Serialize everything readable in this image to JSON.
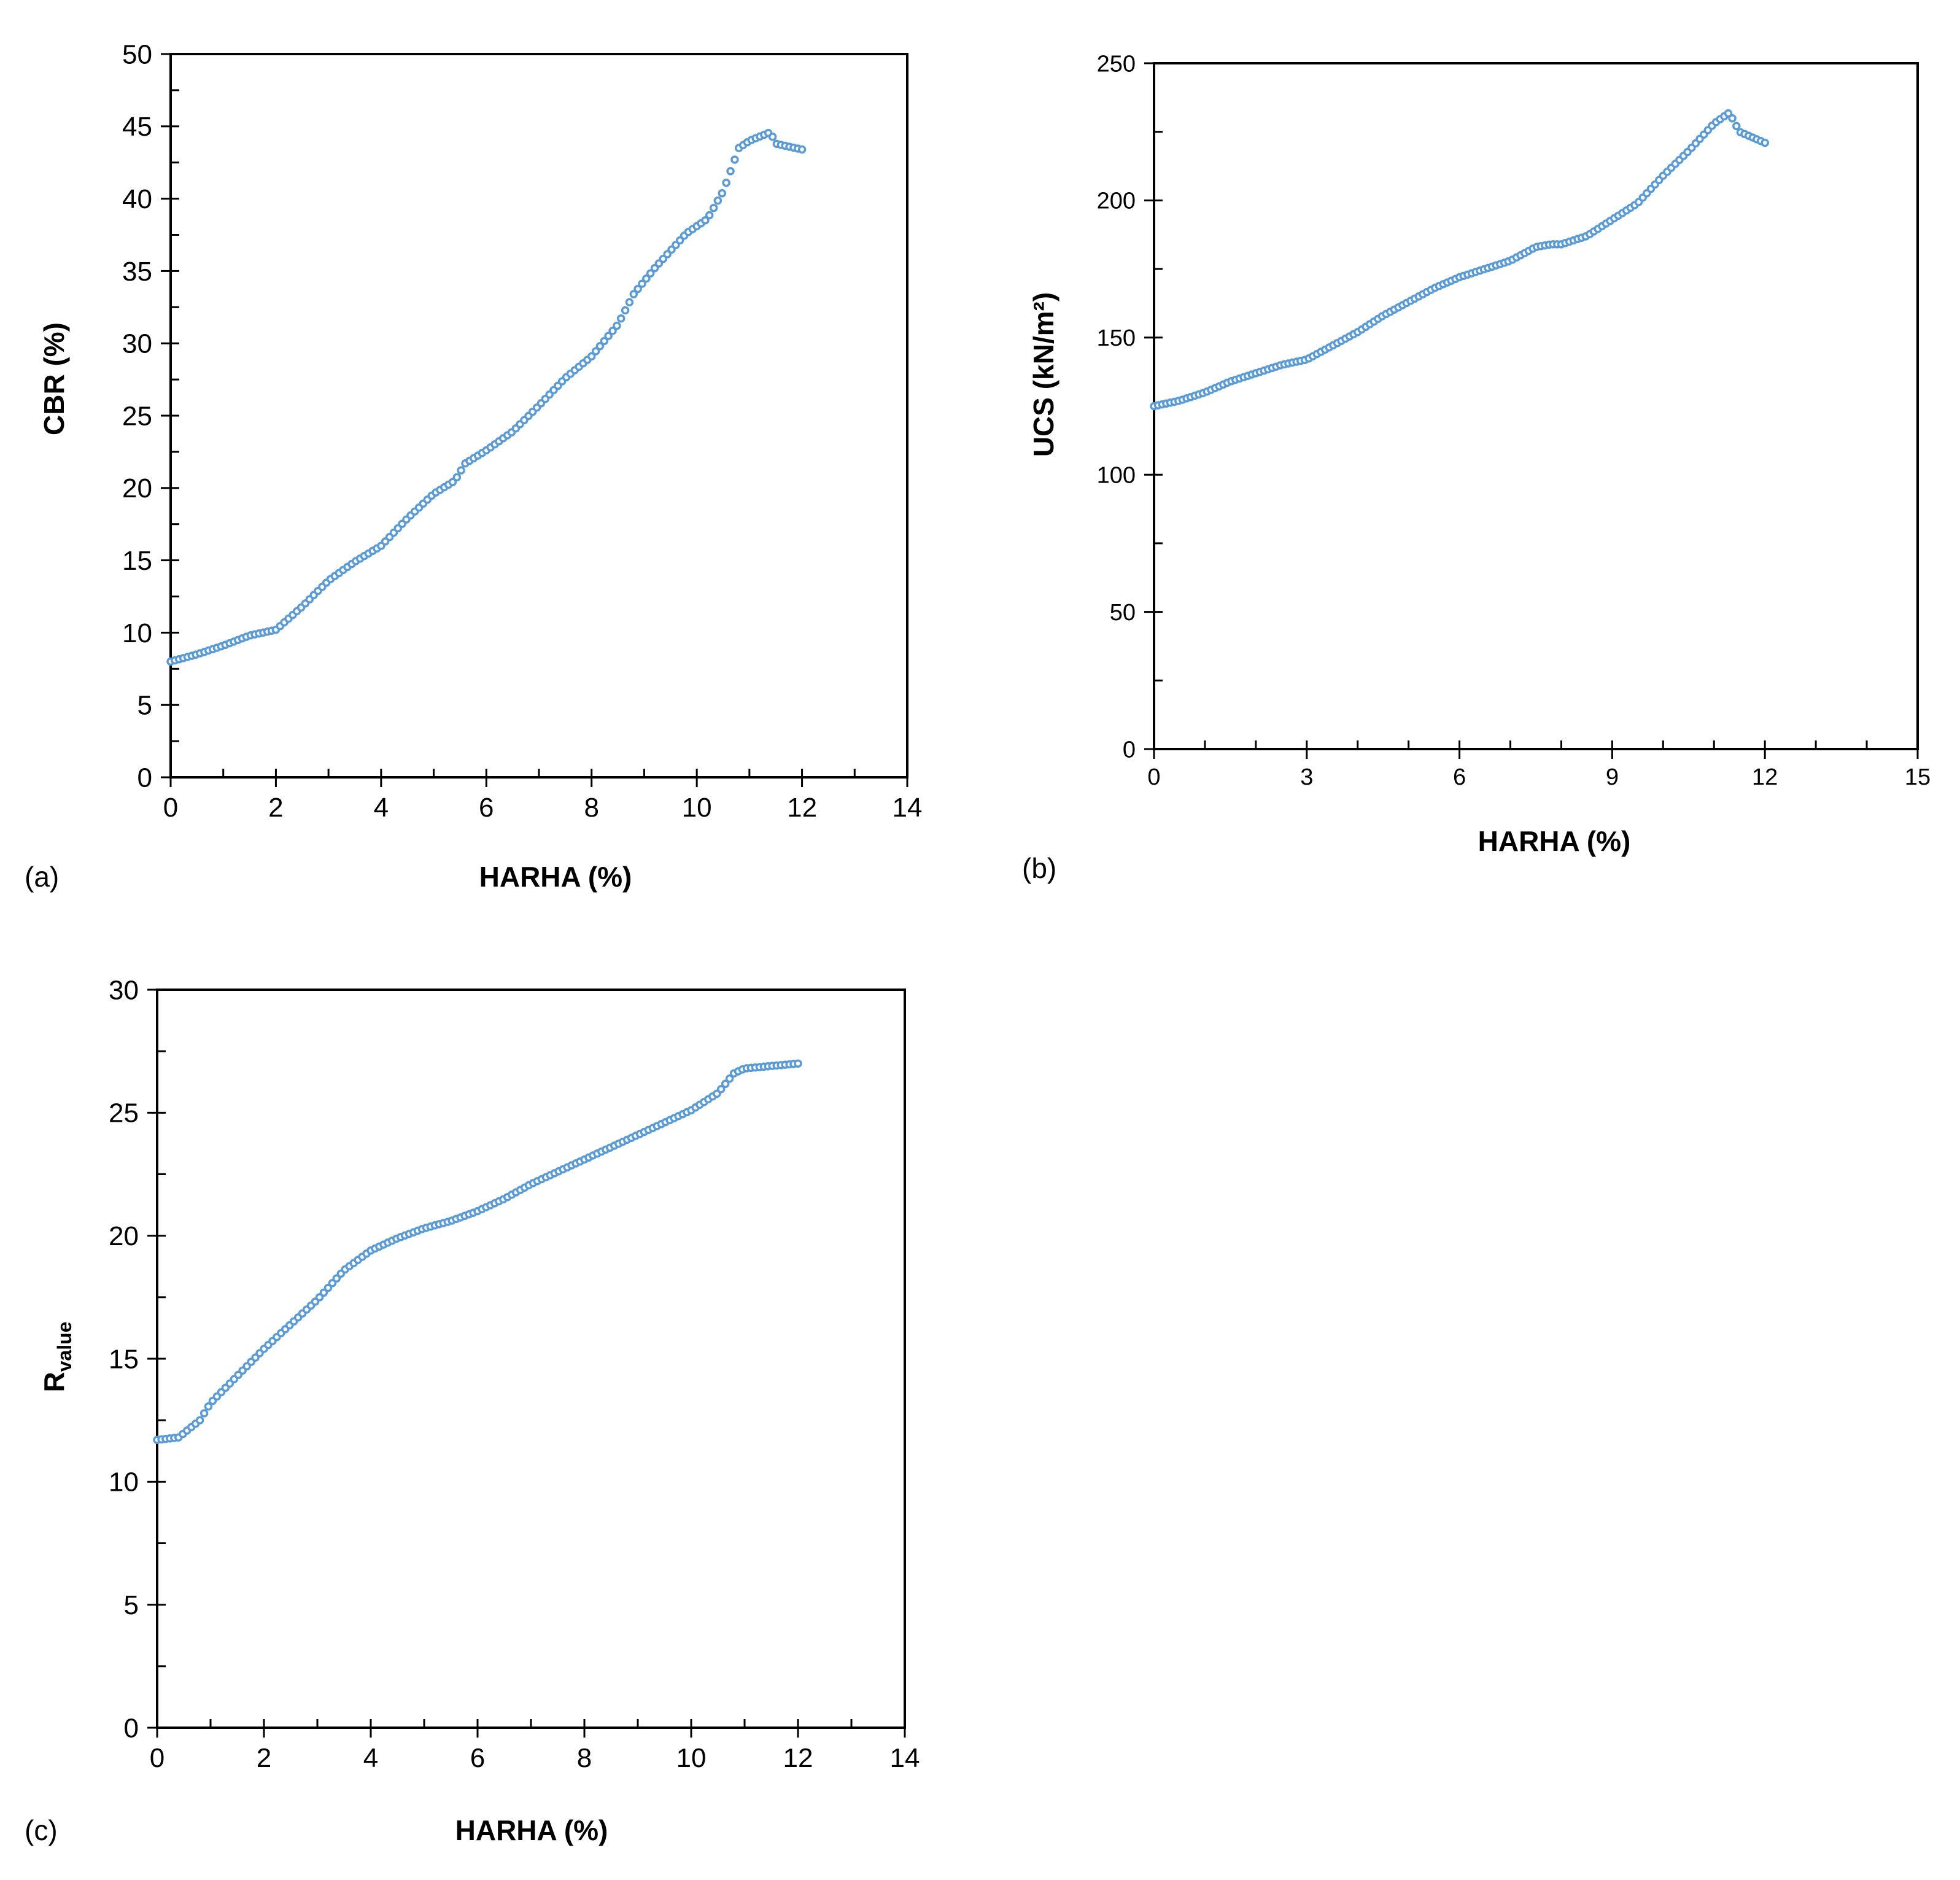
{
  "chart_data": [
    {
      "type": "scatter",
      "panel_label": "(a)",
      "title": "",
      "xlabel": "HARHA (%)",
      "ylabel": "CBR (%)",
      "xlim": [
        0,
        14
      ],
      "ylim": [
        0,
        50
      ],
      "xticks": [
        "0",
        "2",
        "4",
        "6",
        "8",
        "10",
        "12",
        "14"
      ],
      "yticks": [
        "0",
        "5",
        "10",
        "15",
        "20",
        "25",
        "30",
        "35",
        "40",
        "45",
        "50"
      ],
      "xtick_values": [
        0,
        2,
        4,
        6,
        8,
        10,
        12,
        14
      ],
      "ytick_values": [
        0,
        5,
        10,
        15,
        20,
        25,
        30,
        35,
        40,
        45,
        50
      ],
      "x_minor_step": 1,
      "y_minor_step": 2.5,
      "series": [
        {
          "name": "CBR",
          "color": "#5B9BD5",
          "knots": [
            [
              0,
              8.0
            ],
            [
              0.5,
              8.5
            ],
            [
              1.0,
              9.1
            ],
            [
              1.5,
              9.8
            ],
            [
              2.0,
              10.2
            ],
            [
              2.5,
              11.8
            ],
            [
              3.0,
              13.6
            ],
            [
              3.5,
              14.9
            ],
            [
              4.0,
              16.0
            ],
            [
              4.5,
              17.9
            ],
            [
              5.0,
              19.6
            ],
            [
              5.4,
              20.5
            ],
            [
              5.6,
              21.7
            ],
            [
              6.0,
              22.6
            ],
            [
              6.5,
              23.9
            ],
            [
              7.0,
              25.7
            ],
            [
              7.5,
              27.6
            ],
            [
              8.0,
              29.1
            ],
            [
              8.5,
              31.3
            ],
            [
              8.8,
              33.4
            ],
            [
              9.2,
              35.2
            ],
            [
              9.8,
              37.6
            ],
            [
              10.2,
              38.6
            ],
            [
              10.5,
              40.5
            ],
            [
              10.8,
              43.5
            ],
            [
              11.0,
              44.0
            ],
            [
              11.4,
              44.6
            ],
            [
              11.5,
              43.8
            ],
            [
              12.0,
              43.4
            ]
          ],
          "step": 0.08
        }
      ]
    },
    {
      "type": "scatter",
      "panel_label": "(b)",
      "title": "",
      "xlabel": "HARHA (%)",
      "ylabel": "UCS (kN/m²)",
      "xlim": [
        0,
        15
      ],
      "ylim": [
        0,
        250
      ],
      "xticks": [
        "0",
        "3",
        "6",
        "9",
        "12",
        "15"
      ],
      "yticks": [
        "0",
        "50",
        "100",
        "150",
        "200",
        "250"
      ],
      "xtick_values": [
        0,
        3,
        6,
        9,
        12,
        15
      ],
      "ytick_values": [
        0,
        50,
        100,
        150,
        200,
        250
      ],
      "x_minor_step": 1,
      "y_minor_step": 25,
      "series": [
        {
          "name": "UCS",
          "color": "#5B9BD5",
          "knots": [
            [
              0,
              125
            ],
            [
              0.5,
              127
            ],
            [
              1.0,
              130
            ],
            [
              1.5,
              134
            ],
            [
              2.0,
              137
            ],
            [
              2.5,
              140
            ],
            [
              3.0,
              142
            ],
            [
              3.5,
              147
            ],
            [
              4.0,
              152
            ],
            [
              4.5,
              158
            ],
            [
              5.0,
              163
            ],
            [
              5.5,
              168
            ],
            [
              6.0,
              172
            ],
            [
              6.5,
              175
            ],
            [
              7.0,
              178
            ],
            [
              7.5,
              183
            ],
            [
              7.8,
              184
            ],
            [
              8.0,
              184
            ],
            [
              8.5,
              187
            ],
            [
              9.0,
              193
            ],
            [
              9.5,
              199
            ],
            [
              9.8,
              205
            ],
            [
              10.0,
              209
            ],
            [
              10.5,
              218
            ],
            [
              11.0,
              228
            ],
            [
              11.3,
              232
            ],
            [
              11.5,
              225
            ],
            [
              12.0,
              221
            ]
          ],
          "step": 0.08
        }
      ]
    },
    {
      "type": "scatter",
      "panel_label": "(c)",
      "title": "",
      "xlabel": "HARHA (%)",
      "ylabel": "R",
      "ylabel_sub": "value",
      "xlim": [
        0,
        14
      ],
      "ylim": [
        0,
        30
      ],
      "xticks": [
        "0",
        "2",
        "4",
        "6",
        "8",
        "10",
        "12",
        "14"
      ],
      "yticks": [
        "0",
        "5",
        "10",
        "15",
        "20",
        "25",
        "30"
      ],
      "xtick_values": [
        0,
        2,
        4,
        6,
        8,
        10,
        12,
        14
      ],
      "ytick_values": [
        0,
        5,
        10,
        15,
        20,
        25,
        30
      ],
      "x_minor_step": 1,
      "y_minor_step": 2.5,
      "series": [
        {
          "name": "Rvalue",
          "color": "#5B9BD5",
          "knots": [
            [
              0,
              11.7
            ],
            [
              0.4,
              11.8
            ],
            [
              0.8,
              12.5
            ],
            [
              1.0,
              13.2
            ],
            [
              1.5,
              14.3
            ],
            [
              2.0,
              15.4
            ],
            [
              2.5,
              16.4
            ],
            [
              3.0,
              17.4
            ],
            [
              3.5,
              18.6
            ],
            [
              4.0,
              19.4
            ],
            [
              4.5,
              19.9
            ],
            [
              5.0,
              20.3
            ],
            [
              5.5,
              20.6
            ],
            [
              6.0,
              21.0
            ],
            [
              6.5,
              21.5
            ],
            [
              7.0,
              22.1
            ],
            [
              7.5,
              22.6
            ],
            [
              8.0,
              23.1
            ],
            [
              8.5,
              23.6
            ],
            [
              9.0,
              24.1
            ],
            [
              9.5,
              24.6
            ],
            [
              10.0,
              25.1
            ],
            [
              10.5,
              25.8
            ],
            [
              10.8,
              26.6
            ],
            [
              11.0,
              26.8
            ],
            [
              11.5,
              26.9
            ],
            [
              12.0,
              27.0
            ]
          ],
          "step": 0.08
        }
      ]
    }
  ]
}
